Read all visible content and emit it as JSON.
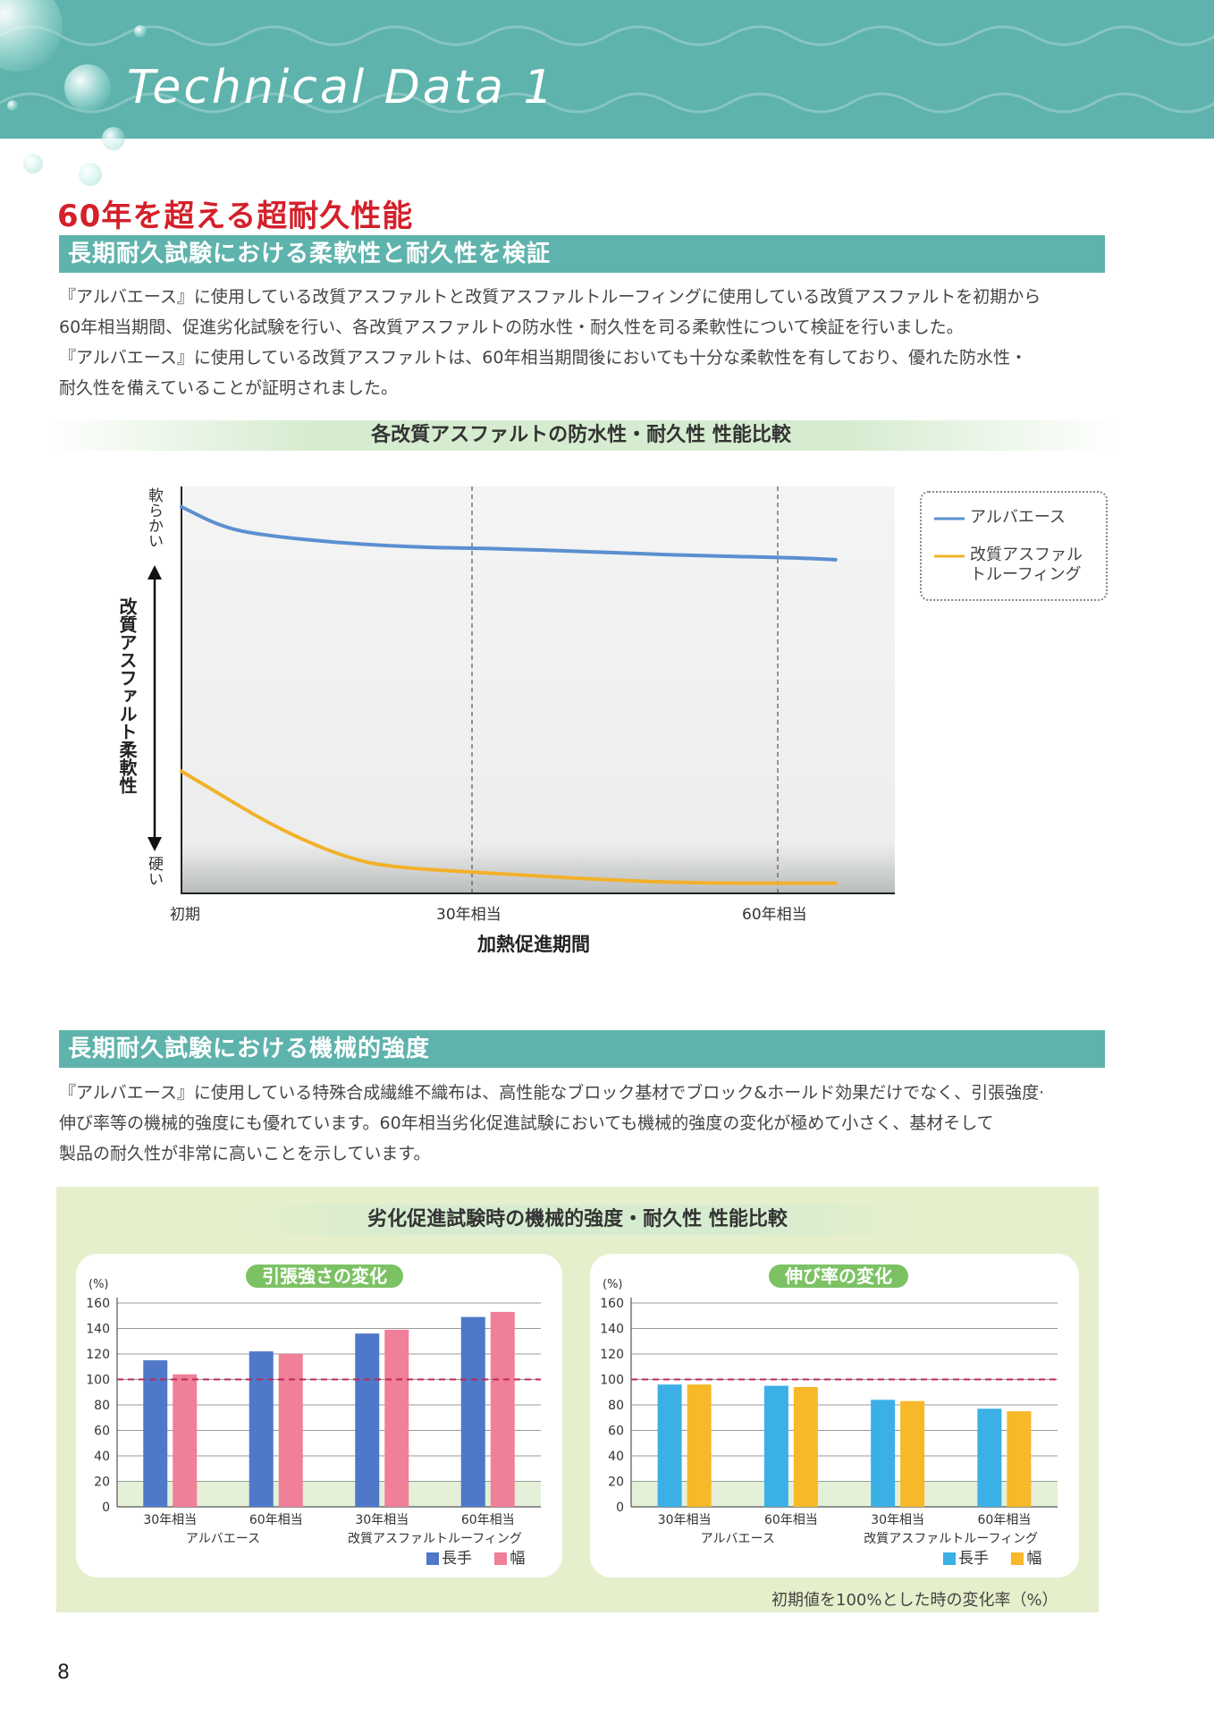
{
  "header": {
    "title": "Technical Data 1"
  },
  "main_title": "60年を超える超耐久性能",
  "section1": {
    "heading": "長期耐久試験における柔軟性と耐久性を検証",
    "lines": [
      "『アルバエース』に使用している改質アスファルトと改質アスファルトルーフィングに使用している改質アスファルトを初期から",
      "60年相当期間、促進劣化試験を行い、各改質アスファルトの防水性・耐久性を司る柔軟性について検証を行いました。",
      "『アルバエース』に使用している改質アスファルトは、60年相当期間後においても十分な柔軟性を有しており、優れた防水性・",
      "耐久性を備えていることが証明されました。"
    ]
  },
  "line_chart": {
    "heading": "各改質アスファルトの防水性・耐久性 性能比較",
    "y_axis_label": "改質アスファルト柔軟性",
    "y_top": "軟らかい",
    "y_bottom": "硬い",
    "x_axis_label": "加熱促進期間",
    "x_ticks": [
      "初期",
      "30年相当",
      "60年相当"
    ]
  },
  "section2": {
    "heading": "長期耐久試験における機械的強度",
    "lines": [
      "『アルバエース』に使用している特殊合成繊維不織布は、高性能なブロック基材でブロック&ホールド効果だけでなく、引張強度·",
      "伸び率等の機械的強度にも優れています。60年相当劣化促進試験においても機械的強度の変化が極めて小さく、基材そして",
      "製品の耐久性が非常に高いことを示しています。"
    ]
  },
  "bar_panel": {
    "heading": "劣化促進試験時の機械的強度・耐久性 性能比較",
    "note": "初期値を100%とした時の変化率（%）"
  },
  "chart_data": [
    {
      "type": "line",
      "x": [
        "初期",
        "30年相当",
        "60年相当"
      ],
      "xlabel": "加熱促進期間",
      "ylabel": "改質アスファルト柔軟性",
      "series": [
        {
          "name": "アルバエース",
          "color": "#5b8fd0",
          "points": [
            [
              0,
              0.95
            ],
            [
              4,
              0.9
            ],
            [
              8,
              0.88
            ],
            [
              16,
              0.86
            ],
            [
              24,
              0.85
            ],
            [
              30,
              0.848
            ],
            [
              40,
              0.84
            ],
            [
              50,
              0.83
            ],
            [
              60,
              0.825
            ],
            [
              64,
              0.82
            ]
          ]
        },
        {
          "name": "改質アスファルトルーフィング",
          "color": "#f2b12a",
          "points": [
            [
              0,
              0.3
            ],
            [
              4,
              0.24
            ],
            [
              8,
              0.18
            ],
            [
              12,
              0.13
            ],
            [
              16,
              0.09
            ],
            [
              20,
              0.065
            ],
            [
              30,
              0.05
            ],
            [
              40,
              0.035
            ],
            [
              50,
              0.025
            ],
            [
              60,
              0.025
            ],
            [
              64,
              0.025
            ]
          ]
        }
      ],
      "ylim": [
        0,
        1
      ],
      "xlim": [
        0,
        69.8
      ],
      "grid": "vertical dashed at 30年相当 and 60年相当",
      "legend": "right"
    },
    {
      "type": "bar",
      "title": "引張強さの変化",
      "unit": "(%)",
      "categories": [
        "30年相当",
        "60年相当",
        "30年相当",
        "60年相当"
      ],
      "groups": [
        "アルバエース",
        "改質アスファルトルーフィング"
      ],
      "series": [
        {
          "name": "長手",
          "color": "#4f78c8",
          "values": [
            115,
            122,
            136,
            149
          ]
        },
        {
          "name": "幅",
          "color": "#f07f98",
          "values": [
            104,
            120,
            139,
            153
          ]
        }
      ],
      "ylim": [
        0,
        160
      ],
      "yticks": [
        "0",
        "20",
        "40",
        "60",
        "80",
        "100",
        "120",
        "140",
        "160"
      ],
      "reference_line": 100,
      "legend": "bottom-right"
    },
    {
      "type": "bar",
      "title": "伸び率の変化",
      "unit": "(%)",
      "categories": [
        "30年相当",
        "60年相当",
        "30年相当",
        "60年相当"
      ],
      "groups": [
        "アルバエース",
        "改質アスファルトルーフィング"
      ],
      "series": [
        {
          "name": "長手",
          "color": "#3bb0e6",
          "values": [
            96,
            95,
            84,
            77
          ]
        },
        {
          "name": "幅",
          "color": "#f7b829",
          "values": [
            96,
            94,
            83,
            75
          ]
        }
      ],
      "ylim": [
        0,
        160
      ],
      "yticks": [
        "0",
        "20",
        "40",
        "60",
        "80",
        "100",
        "120",
        "140",
        "160"
      ],
      "reference_line": 100,
      "legend": "bottom-right"
    }
  ],
  "page_number": "8"
}
